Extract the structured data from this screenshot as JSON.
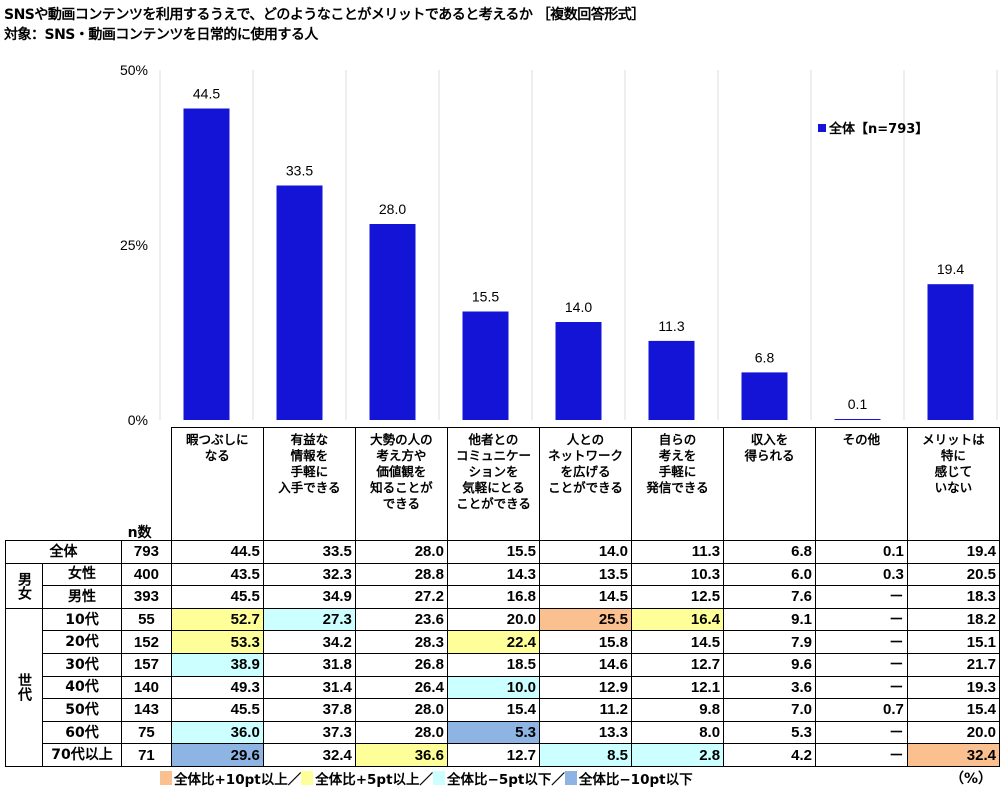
{
  "title": "SNSや動画コンテンツを利用するうえで、どのようなことがメリットであると考えるか ［複数回答形式］",
  "subtitle": "対象：SNS・動画コンテンツを日常的に使用する人",
  "colors": {
    "bar": "#1414D6",
    "plus10": "#FAC090",
    "plus5": "#FFFF99",
    "minus5": "#CCFFFF",
    "minus10": "#8DB4E2"
  },
  "chart_data": {
    "type": "bar",
    "categories": [
      "暇つぶしに\nなる",
      "有益な\n情報を\n手軽に\n入手できる",
      "大勢の人の\n考え方や\n価値観を\n知ることが\nできる",
      "他者との\nコミュニケー\nションを\n気軽にとる\nことができる",
      "人との\nネットワーク\nを広げる\nことができる",
      "自らの\n考えを\n手軽に\n発信できる",
      "収入を\n得られる",
      "その他",
      "メリットは\n特に\n感じて\nいない"
    ],
    "series": [
      {
        "name": "全体【n=793】",
        "values": [
          44.5,
          33.5,
          28.0,
          15.5,
          14.0,
          11.3,
          6.8,
          0.1,
          19.4
        ]
      }
    ],
    "ylim": [
      0,
      50
    ],
    "yticks": [
      "0%",
      "25%",
      "50%"
    ],
    "ytick_values": [
      0,
      25,
      50
    ],
    "legend_placement": "top-right",
    "grid": false
  },
  "table": {
    "n_header": "n数",
    "rows": [
      {
        "group": "",
        "label": "全体",
        "n": "793",
        "values": [
          "44.5",
          "33.5",
          "28.0",
          "15.5",
          "14.0",
          "11.3",
          "6.8",
          "0.1",
          "19.4"
        ],
        "hl": [
          "",
          "",
          "",
          "",
          "",
          "",
          "",
          "",
          ""
        ]
      },
      {
        "group": "男女",
        "label": "女性",
        "n": "400",
        "values": [
          "43.5",
          "32.3",
          "28.8",
          "14.3",
          "13.5",
          "10.3",
          "6.0",
          "0.3",
          "20.5"
        ],
        "hl": [
          "",
          "",
          "",
          "",
          "",
          "",
          "",
          "",
          ""
        ]
      },
      {
        "group": "男女",
        "label": "男性",
        "n": "393",
        "values": [
          "45.5",
          "34.9",
          "27.2",
          "16.8",
          "14.5",
          "12.5",
          "7.6",
          "－",
          "18.3"
        ],
        "hl": [
          "",
          "",
          "",
          "",
          "",
          "",
          "",
          "",
          ""
        ]
      },
      {
        "group": "世代",
        "label": "10代",
        "n": "55",
        "values": [
          "52.7",
          "27.3",
          "23.6",
          "20.0",
          "25.5",
          "16.4",
          "9.1",
          "－",
          "18.2"
        ],
        "hl": [
          "plus5",
          "minus5",
          "",
          "",
          "plus10",
          "plus5",
          "",
          "",
          ""
        ]
      },
      {
        "group": "世代",
        "label": "20代",
        "n": "152",
        "values": [
          "53.3",
          "34.2",
          "28.3",
          "22.4",
          "15.8",
          "14.5",
          "7.9",
          "－",
          "15.1"
        ],
        "hl": [
          "plus5",
          "",
          "",
          "plus5",
          "",
          "",
          "",
          "",
          ""
        ]
      },
      {
        "group": "世代",
        "label": "30代",
        "n": "157",
        "values": [
          "38.9",
          "31.8",
          "26.8",
          "18.5",
          "14.6",
          "12.7",
          "9.6",
          "－",
          "21.7"
        ],
        "hl": [
          "minus5",
          "",
          "",
          "",
          "",
          "",
          "",
          "",
          ""
        ]
      },
      {
        "group": "世代",
        "label": "40代",
        "n": "140",
        "values": [
          "49.3",
          "31.4",
          "26.4",
          "10.0",
          "12.9",
          "12.1",
          "3.6",
          "－",
          "19.3"
        ],
        "hl": [
          "",
          "",
          "",
          "minus5",
          "",
          "",
          "",
          "",
          ""
        ]
      },
      {
        "group": "世代",
        "label": "50代",
        "n": "143",
        "values": [
          "45.5",
          "37.8",
          "28.0",
          "15.4",
          "11.2",
          "9.8",
          "7.0",
          "0.7",
          "15.4"
        ],
        "hl": [
          "",
          "",
          "",
          "",
          "",
          "",
          "",
          "",
          ""
        ]
      },
      {
        "group": "世代",
        "label": "60代",
        "n": "75",
        "values": [
          "36.0",
          "37.3",
          "28.0",
          "5.3",
          "13.3",
          "8.0",
          "5.3",
          "－",
          "20.0"
        ],
        "hl": [
          "minus5",
          "",
          "",
          "minus10",
          "",
          "",
          "",
          "",
          ""
        ]
      },
      {
        "group": "世代",
        "label": "70代以上",
        "n": "71",
        "values": [
          "29.6",
          "32.4",
          "36.6",
          "12.7",
          "8.5",
          "2.8",
          "4.2",
          "－",
          "32.4"
        ],
        "hl": [
          "minus10",
          "",
          "plus5",
          "",
          "minus5",
          "minus5",
          "",
          "",
          "plus10"
        ]
      }
    ]
  },
  "footer": {
    "items": [
      "全体比+10pt以上／",
      "全体比+5pt以上／",
      "全体比−5pt以下／",
      "全体比−10pt以下"
    ],
    "unit": "（%）"
  }
}
